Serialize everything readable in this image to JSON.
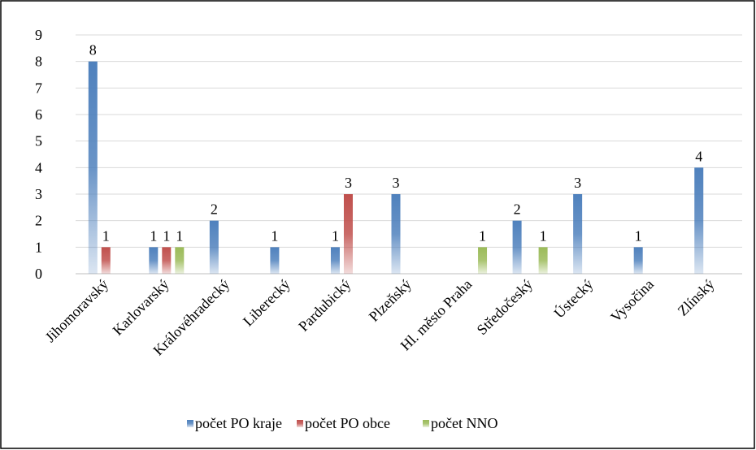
{
  "chart_data": {
    "type": "bar",
    "categories": [
      "Jihomoravský",
      "Karlovarský",
      "Královéhradecký",
      "Liberecký",
      "Pardubický",
      "Plzeňský",
      "Hl. město Praha",
      "Středočeský",
      "Ústecký",
      "Vysočina",
      "Zlínský"
    ],
    "series": [
      {
        "name": "počet PO kraje",
        "color": "#4f81bd",
        "values": [
          8,
          1,
          2,
          1,
          1,
          3,
          null,
          2,
          3,
          1,
          4
        ]
      },
      {
        "name": "počet PO obce",
        "color": "#c0504d",
        "values": [
          1,
          1,
          null,
          null,
          3,
          null,
          null,
          null,
          null,
          null,
          null
        ]
      },
      {
        "name": "počet NNO",
        "color": "#9bbb59",
        "values": [
          null,
          1,
          null,
          null,
          null,
          null,
          1,
          1,
          null,
          null,
          null
        ]
      }
    ],
    "ylim": [
      0,
      9
    ],
    "yticks": [
      0,
      1,
      2,
      3,
      4,
      5,
      6,
      7,
      8,
      9
    ],
    "grid": true,
    "legend": "bottom"
  }
}
